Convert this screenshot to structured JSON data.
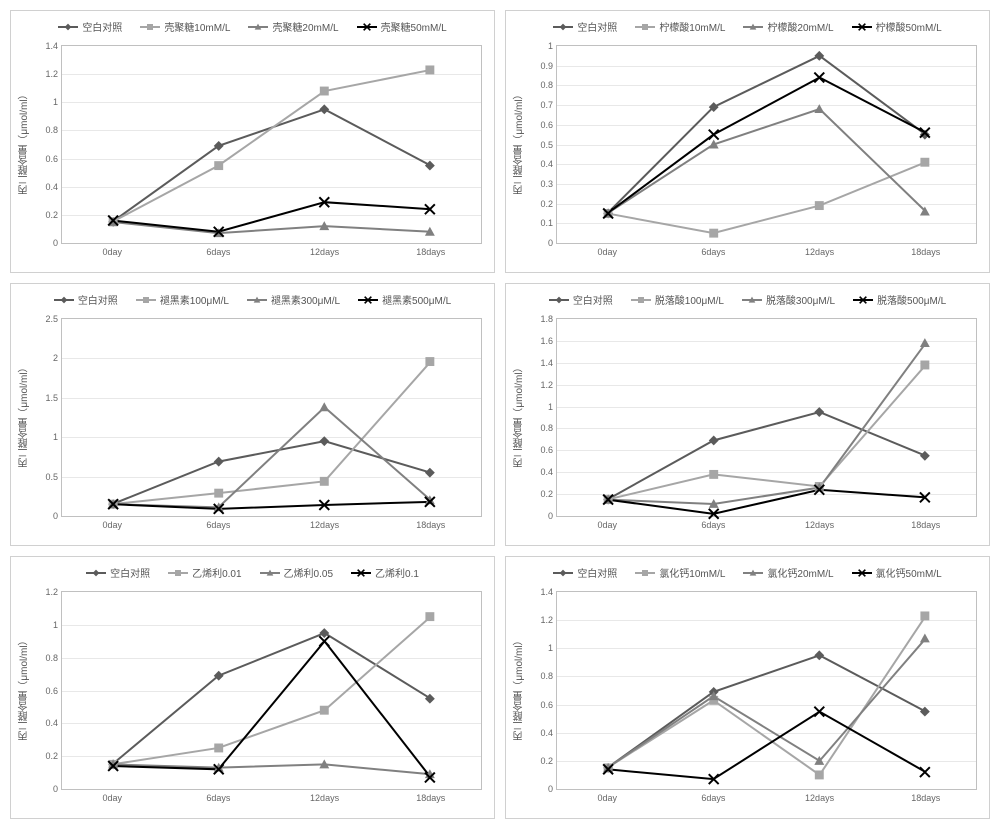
{
  "ylabel": "丙二醛含量（μmol/ml）",
  "label_fontsize": 10,
  "tick_fontsize": 9,
  "background_color": "#ffffff",
  "grid_color": "#e8e8e8",
  "axis_color": "#c0c0c0",
  "colors": {
    "control": "#5b5b5b",
    "s1": "#a6a6a6",
    "s2": "#808080",
    "s3": "#000000"
  },
  "markers": {
    "control": "diamond",
    "s1": "square",
    "s2": "triangle",
    "s3": "x"
  },
  "line_width": 2,
  "marker_size": 5,
  "categories": [
    "0day",
    "6days",
    "12days",
    "18days"
  ],
  "charts": [
    {
      "id": "chitosan",
      "type": "line",
      "legend": [
        "空白对照",
        "壳聚糖10mM/L",
        "壳聚糖20mM/L",
        "壳聚糖50mM/L"
      ],
      "ylim": [
        0,
        1.4
      ],
      "ytick_step": 0.2,
      "series": [
        {
          "key": "control",
          "values": [
            0.15,
            0.69,
            0.95,
            0.55
          ]
        },
        {
          "key": "s1",
          "values": [
            0.15,
            0.55,
            1.08,
            1.23
          ]
        },
        {
          "key": "s2",
          "values": [
            0.15,
            0.07,
            0.12,
            0.08
          ]
        },
        {
          "key": "s3",
          "values": [
            0.16,
            0.08,
            0.29,
            0.24
          ]
        }
      ]
    },
    {
      "id": "citric",
      "type": "line",
      "legend": [
        "空白对照",
        "柠檬酸10mM/L",
        "柠檬酸20mM/L",
        "柠檬酸50mM/L"
      ],
      "ylim": [
        0,
        1.0
      ],
      "ytick_step": 0.1,
      "series": [
        {
          "key": "control",
          "values": [
            0.15,
            0.69,
            0.95,
            0.55
          ]
        },
        {
          "key": "s1",
          "values": [
            0.15,
            0.05,
            0.19,
            0.41
          ]
        },
        {
          "key": "s2",
          "values": [
            0.15,
            0.5,
            0.68,
            0.16
          ]
        },
        {
          "key": "s3",
          "values": [
            0.15,
            0.55,
            0.84,
            0.56
          ]
        }
      ]
    },
    {
      "id": "melatonin",
      "type": "line",
      "legend": [
        "空白对照",
        "褪黑素100μM/L",
        "褪黑素300μM/L",
        "褪黑素500μM/L"
      ],
      "ylim": [
        0,
        2.5
      ],
      "ytick_step": 0.5,
      "series": [
        {
          "key": "control",
          "values": [
            0.15,
            0.69,
            0.95,
            0.55
          ]
        },
        {
          "key": "s1",
          "values": [
            0.15,
            0.29,
            0.44,
            1.96
          ]
        },
        {
          "key": "s2",
          "values": [
            0.15,
            0.11,
            1.38,
            0.2
          ]
        },
        {
          "key": "s3",
          "values": [
            0.15,
            0.09,
            0.14,
            0.18
          ]
        }
      ]
    },
    {
      "id": "aba",
      "type": "line",
      "legend": [
        "空白对照",
        "脱落酸100μM/L",
        "脱落酸300μM/L",
        "脱落酸500μM/L"
      ],
      "ylim": [
        0,
        1.8
      ],
      "ytick_step": 0.2,
      "series": [
        {
          "key": "control",
          "values": [
            0.15,
            0.69,
            0.95,
            0.55
          ]
        },
        {
          "key": "s1",
          "values": [
            0.15,
            0.38,
            0.27,
            1.38
          ]
        },
        {
          "key": "s2",
          "values": [
            0.15,
            0.11,
            0.26,
            1.58
          ]
        },
        {
          "key": "s3",
          "values": [
            0.15,
            0.02,
            0.24,
            0.17
          ]
        }
      ]
    },
    {
      "id": "ethephon",
      "type": "line",
      "legend": [
        "空白对照",
        "乙烯利0.01",
        "乙烯利0.05",
        "乙烯利0.1"
      ],
      "ylim": [
        0,
        1.2
      ],
      "ytick_step": 0.2,
      "series": [
        {
          "key": "control",
          "values": [
            0.15,
            0.69,
            0.95,
            0.55
          ]
        },
        {
          "key": "s1",
          "values": [
            0.15,
            0.25,
            0.48,
            1.05
          ]
        },
        {
          "key": "s2",
          "values": [
            0.15,
            0.13,
            0.15,
            0.09
          ]
        },
        {
          "key": "s3",
          "values": [
            0.14,
            0.12,
            0.9,
            0.07
          ]
        }
      ]
    },
    {
      "id": "cacl2",
      "type": "line",
      "legend": [
        "空白对照",
        "氯化钙10mM/L",
        "氯化钙20mM/L",
        "氯化钙50mM/L"
      ],
      "ylim": [
        0,
        1.4
      ],
      "ytick_step": 0.2,
      "series": [
        {
          "key": "control",
          "values": [
            0.15,
            0.69,
            0.95,
            0.55
          ]
        },
        {
          "key": "s1",
          "values": [
            0.15,
            0.63,
            0.1,
            1.23
          ]
        },
        {
          "key": "s2",
          "values": [
            0.15,
            0.66,
            0.2,
            1.07
          ]
        },
        {
          "key": "s3",
          "values": [
            0.14,
            0.07,
            0.55,
            0.12
          ]
        }
      ]
    }
  ]
}
